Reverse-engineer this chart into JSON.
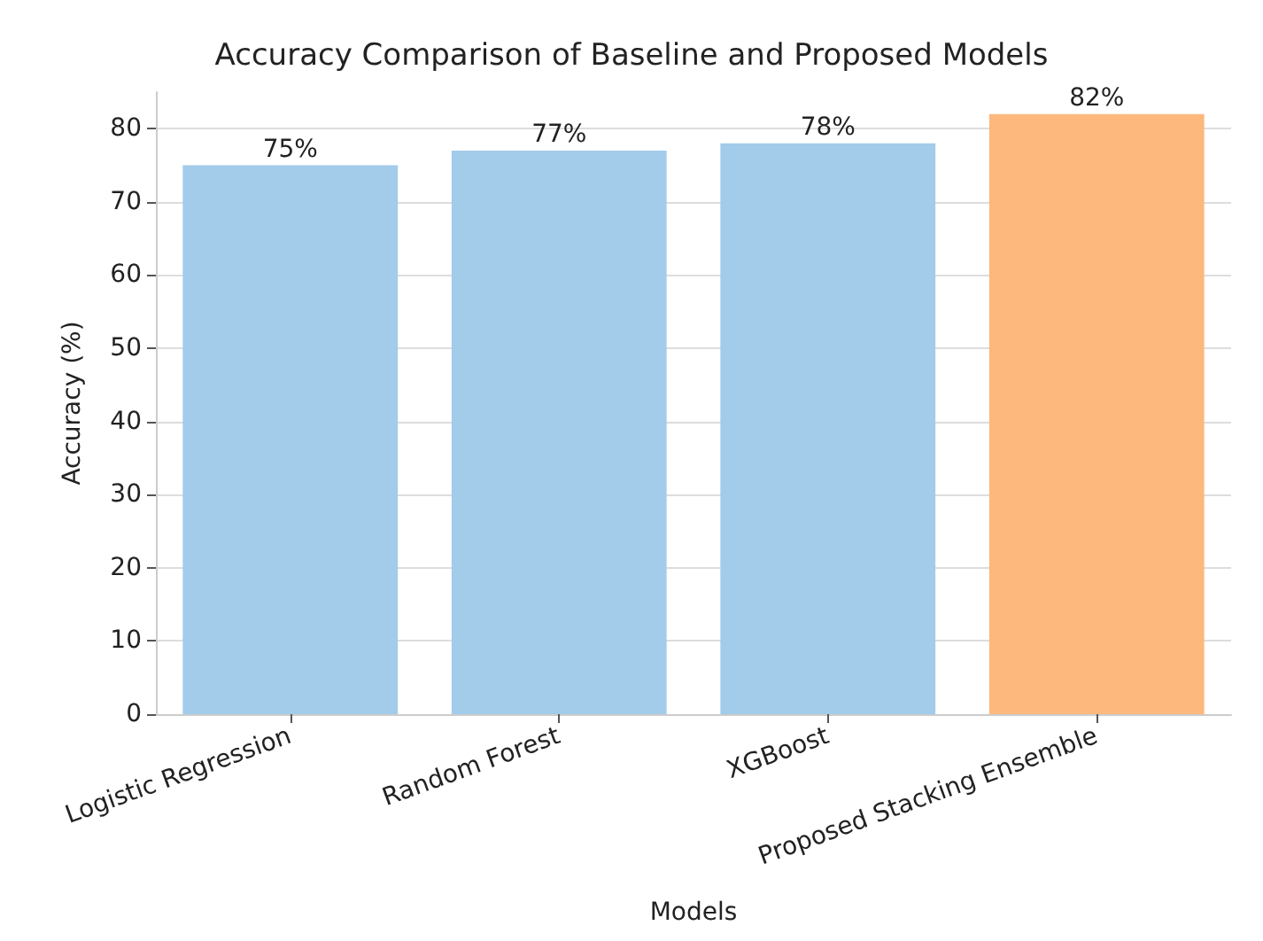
{
  "chart_data": {
    "type": "bar",
    "title": "Accuracy Comparison of Baseline and Proposed Models",
    "xlabel": "Models",
    "ylabel": "Accuracy (%)",
    "categories": [
      "Logistic Regression",
      "Random Forest",
      "XGBoost",
      "Proposed Stacking Ensemble"
    ],
    "values": [
      75,
      77,
      78,
      82
    ],
    "colors": [
      "#a3cbea",
      "#a3cbea",
      "#a3cbea",
      "#fdb87d"
    ],
    "value_labels": [
      "75%",
      "77%",
      "78%",
      "82%"
    ],
    "ylim": [
      0,
      85
    ],
    "yticks": [
      0,
      10,
      20,
      30,
      40,
      50,
      60,
      70,
      80
    ],
    "grid": "y"
  }
}
